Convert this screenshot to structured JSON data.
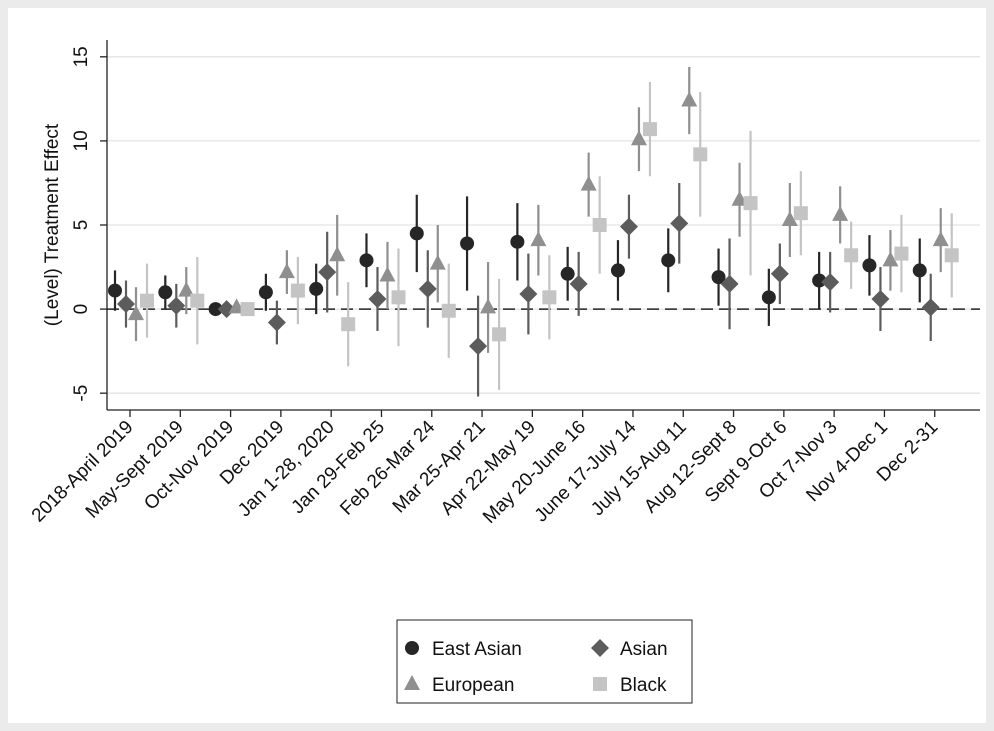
{
  "chart_data": {
    "type": "errorbar",
    "ylabel": "(Level) Treatment Effect",
    "categories": [
      "2018-April 2019",
      "May-Sept 2019",
      "Oct-Nov 2019",
      "Dec 2019",
      "Jan 1-28, 2020",
      "Jan 29-Feb 25",
      "Feb 26-Mar 24",
      "Mar 25-Apr 21",
      "Apr 22-May 19",
      "May 20-June 16",
      "June 17-July 14",
      "July 15-Aug 11",
      "Aug 12-Sept 8",
      "Sept 9-Oct 6",
      "Oct 7-Nov 3",
      "Nov 4-Dec 1",
      "Dec 2-31"
    ],
    "series": [
      {
        "name": "East Asian",
        "color": "#262626",
        "marker": "circle",
        "values": [
          1.1,
          1.0,
          0,
          1.0,
          1.2,
          2.9,
          4.5,
          3.9,
          4.0,
          2.1,
          2.3,
          2.9,
          1.9,
          0.7,
          1.7,
          2.6,
          2.3
        ],
        "errors": [
          1.2,
          1.0,
          0,
          1.1,
          1.5,
          1.6,
          2.3,
          2.8,
          2.3,
          1.6,
          1.8,
          1.9,
          1.7,
          1.7,
          1.7,
          1.8,
          1.9
        ]
      },
      {
        "name": "Asian",
        "color": "#5c5c5c",
        "marker": "diamond",
        "values": [
          0.3,
          0.2,
          0,
          -0.8,
          2.2,
          0.6,
          1.2,
          -2.2,
          0.9,
          1.5,
          4.9,
          5.1,
          1.5,
          2.1,
          1.6,
          0.6,
          0.1
        ],
        "errors": [
          1.4,
          1.3,
          0,
          1.3,
          2.4,
          1.9,
          2.3,
          3.0,
          2.4,
          1.9,
          1.9,
          2.4,
          2.7,
          1.8,
          1.8,
          1.9,
          2.0
        ]
      },
      {
        "name": "European",
        "color": "#8f8f8f",
        "marker": "triangle",
        "values": [
          -0.3,
          1.1,
          0.1,
          2.2,
          3.2,
          2.0,
          2.7,
          0.1,
          4.1,
          7.4,
          10.1,
          12.4,
          6.5,
          5.3,
          5.6,
          2.9,
          4.1
        ],
        "errors": [
          1.6,
          1.4,
          0,
          1.3,
          2.4,
          2.0,
          2.3,
          2.7,
          2.1,
          1.9,
          1.9,
          2.0,
          2.2,
          2.2,
          1.7,
          1.8,
          1.9
        ]
      },
      {
        "name": "Black",
        "color": "#c4c4c4",
        "marker": "square",
        "values": [
          0.5,
          0.5,
          0,
          1.1,
          -0.9,
          0.7,
          -0.1,
          -1.5,
          0.7,
          5.0,
          10.7,
          9.2,
          6.3,
          5.7,
          3.2,
          3.3,
          3.2
        ],
        "errors": [
          2.2,
          2.6,
          0,
          2.0,
          2.5,
          2.9,
          2.8,
          3.3,
          2.5,
          2.9,
          2.8,
          3.7,
          4.3,
          2.5,
          2.0,
          2.3,
          2.5
        ]
      }
    ],
    "ylim": [
      -6,
      16
    ],
    "yticks": [
      -5,
      0,
      5,
      10,
      15
    ],
    "grid": true,
    "reference_line": 0,
    "legend": "bottom"
  }
}
